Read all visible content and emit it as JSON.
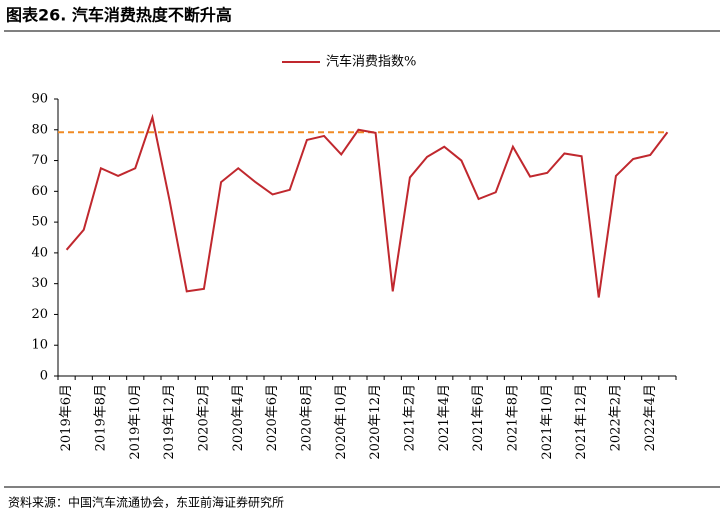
{
  "chart_data": {
    "type": "line",
    "title": "图表26. 汽车消费热度不断升高",
    "source": "资料来源：中国汽车流通协会，东亚前海证券研究所",
    "categories": [
      "2019年6月",
      null,
      "2019年8月",
      null,
      "2019年10月",
      null,
      "2019年12月",
      null,
      "2020年2月",
      null,
      "2020年4月",
      null,
      "2020年6月",
      null,
      "2020年8月",
      null,
      "2020年10月",
      null,
      "2020年12月",
      null,
      "2021年2月",
      null,
      "2021年4月",
      null,
      "2021年6月",
      null,
      "2021年8月",
      null,
      "2021年10月",
      null,
      "2021年12月",
      null,
      "2022年2月",
      null,
      "2022年4月",
      null
    ],
    "series": [
      {
        "name": "汽车消费指数%",
        "color": "#c0282e",
        "values": [
          41,
          47.5,
          67.5,
          65,
          67.5,
          84,
          57,
          27.5,
          28.3,
          63,
          67.5,
          63,
          59,
          60.5,
          76.7,
          78,
          72,
          80,
          79,
          27.5,
          64.5,
          71.2,
          74.5,
          70,
          57.5,
          59.7,
          74.5,
          64.8,
          66,
          72.3,
          71.4,
          25.5,
          65,
          70.5,
          71.8,
          79.2
        ]
      }
    ],
    "reference_line": {
      "value": 79.2,
      "color": "#f08a24"
    },
    "ylim": [
      0,
      90
    ],
    "yticks": [
      0,
      10,
      20,
      30,
      40,
      50,
      60,
      70,
      80,
      90
    ],
    "legend": "top"
  }
}
